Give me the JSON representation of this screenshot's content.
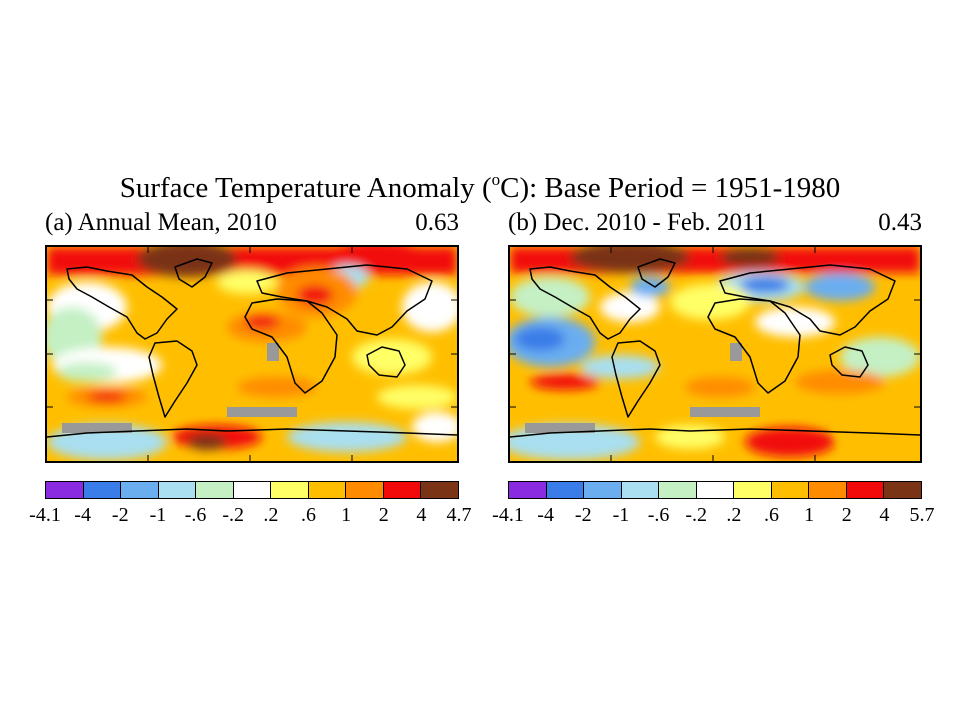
{
  "title": {
    "prefix": "Surface Temperature Anomaly (",
    "degree": "o",
    "suffix": "C): Base Period = 1951-1980"
  },
  "palette": [
    "#8a2be2",
    "#3a7de8",
    "#6aaef0",
    "#a9dff0",
    "#c4f0c4",
    "#ffffff",
    "#ffff66",
    "#ffbf00",
    "#ff8c00",
    "#f20a0a",
    "#7a3314"
  ],
  "panels": [
    {
      "id": "a",
      "label": "(a) Annual Mean, 2010",
      "global_mean": "0.63",
      "colorbar_ticks": [
        "-4.1",
        "-4",
        "-2",
        "-1",
        "-.6",
        "-.2",
        ".2",
        ".6",
        "1",
        "2",
        "4",
        "4.7"
      ]
    },
    {
      "id": "b",
      "label": "(b) Dec. 2010 - Feb. 2011",
      "global_mean": "0.43",
      "colorbar_ticks": [
        "-4.1",
        "-4",
        "-2",
        "-1",
        "-.6",
        "-.2",
        ".2",
        ".6",
        "1",
        "2",
        "4",
        "5.7"
      ]
    }
  ]
}
